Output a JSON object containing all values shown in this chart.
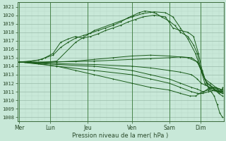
{
  "xlabel": "Pression niveau de la mer( hPa )",
  "ylim": [
    1007.5,
    1021.5
  ],
  "xlim": [
    -0.05,
    5.45
  ],
  "background_color": "#c8e8d8",
  "grid_major_color": "#99bbaa",
  "grid_minor_color": "#b8d8c8",
  "line_color": "#1a5c1a",
  "day_labels": [
    "Mer",
    "Lun",
    "Jeu",
    "Ven",
    "Sam",
    "Dim"
  ],
  "day_positions": [
    0.0,
    0.83,
    1.83,
    3.0,
    4.0,
    4.83
  ],
  "yticks": [
    1008,
    1009,
    1010,
    1011,
    1012,
    1013,
    1014,
    1015,
    1016,
    1017,
    1018,
    1019,
    1020,
    1021
  ],
  "lines": [
    {
      "x": [
        0.0,
        0.15,
        0.3,
        0.5,
        0.7,
        0.9,
        1.1,
        1.3,
        1.5,
        1.7,
        1.9,
        2.1,
        2.3,
        2.5,
        2.7,
        2.9,
        3.05,
        3.2,
        3.35,
        3.5,
        3.65,
        3.8,
        4.0,
        4.15,
        4.3,
        4.5,
        4.65,
        4.75,
        4.85,
        4.95,
        5.05,
        5.15,
        5.3,
        5.42
      ],
      "y": [
        1014.5,
        1014.5,
        1014.6,
        1014.7,
        1015.0,
        1015.3,
        1016.2,
        1016.8,
        1017.3,
        1017.6,
        1017.9,
        1018.2,
        1018.5,
        1018.8,
        1019.2,
        1019.7,
        1020.0,
        1020.3,
        1020.5,
        1020.4,
        1020.2,
        1019.8,
        1019.3,
        1018.8,
        1018.0,
        1017.5,
        1016.5,
        1015.5,
        1013.5,
        1012.0,
        1011.5,
        1011.2,
        1011.0,
        1011.3
      ]
    },
    {
      "x": [
        0.0,
        0.5,
        1.0,
        1.5,
        2.0,
        2.5,
        3.0,
        3.3,
        3.6,
        3.9,
        4.1,
        4.3,
        4.5,
        4.7,
        4.85,
        5.0,
        5.15,
        5.3,
        5.42
      ],
      "y": [
        1014.5,
        1014.4,
        1014.6,
        1016.8,
        1018.2,
        1019.0,
        1019.8,
        1020.2,
        1020.4,
        1020.3,
        1019.8,
        1018.5,
        1017.2,
        1015.5,
        1013.5,
        1012.0,
        1011.5,
        1011.0,
        1010.8
      ]
    },
    {
      "x": [
        0.0,
        1.0,
        2.0,
        3.0,
        3.5,
        4.0,
        4.3,
        4.6,
        4.75,
        4.85,
        4.95,
        5.1,
        5.25,
        5.42
      ],
      "y": [
        1014.5,
        1014.5,
        1014.6,
        1014.8,
        1014.9,
        1015.0,
        1015.1,
        1015.0,
        1014.5,
        1013.5,
        1012.5,
        1012.0,
        1011.5,
        1011.2
      ]
    },
    {
      "x": [
        0.0,
        1.0,
        2.0,
        3.0,
        3.5,
        4.0,
        4.3,
        4.6,
        4.75,
        4.85,
        4.95,
        5.1,
        5.25,
        5.42
      ],
      "y": [
        1014.5,
        1014.3,
        1014.2,
        1014.0,
        1013.8,
        1013.5,
        1013.3,
        1013.0,
        1012.5,
        1012.0,
        1011.8,
        1011.5,
        1011.2,
        1011.0
      ]
    },
    {
      "x": [
        0.0,
        1.0,
        2.0,
        3.0,
        3.5,
        4.0,
        4.3,
        4.6,
        4.75,
        4.9,
        5.05,
        5.2,
        5.35,
        5.42
      ],
      "y": [
        1014.5,
        1014.2,
        1014.0,
        1013.5,
        1013.0,
        1012.5,
        1012.0,
        1011.5,
        1011.3,
        1011.0,
        1011.2,
        1011.5,
        1011.3,
        1011.0
      ]
    },
    {
      "x": [
        0.0,
        1.0,
        2.0,
        3.0,
        3.5,
        4.0,
        4.3,
        4.6,
        4.75,
        4.9,
        5.05,
        5.2,
        5.35,
        5.42
      ],
      "y": [
        1014.5,
        1014.0,
        1013.5,
        1013.0,
        1012.5,
        1012.0,
        1011.5,
        1011.0,
        1010.8,
        1010.8,
        1011.0,
        1011.2,
        1011.0,
        1010.8
      ]
    },
    {
      "x": [
        0.0,
        0.5,
        1.0,
        1.5,
        2.0,
        2.5,
        3.0,
        3.5,
        4.0,
        4.3,
        4.55,
        4.7,
        4.82,
        4.92,
        5.02,
        5.12,
        5.22,
        5.32,
        5.42
      ],
      "y": [
        1014.5,
        1014.3,
        1014.0,
        1013.5,
        1013.0,
        1012.5,
        1012.0,
        1011.5,
        1011.2,
        1010.8,
        1010.5,
        1010.5,
        1010.8,
        1011.0,
        1011.3,
        1011.5,
        1011.2,
        1010.8,
        1010.5
      ]
    },
    {
      "x": [
        0.0,
        0.5,
        1.0,
        1.5,
        2.0,
        2.5,
        3.0,
        3.5,
        4.0,
        4.5,
        4.75,
        4.88,
        4.95,
        5.05,
        5.12,
        5.2,
        5.28,
        5.35,
        5.42
      ],
      "y": [
        1014.5,
        1014.4,
        1014.5,
        1014.6,
        1014.8,
        1015.0,
        1015.2,
        1015.3,
        1015.2,
        1015.0,
        1014.5,
        1013.5,
        1012.5,
        1011.5,
        1011.0,
        1010.5,
        1009.5,
        1008.5,
        1008.0
      ]
    },
    {
      "x": [
        0.0,
        0.3,
        0.6,
        0.9,
        1.1,
        1.3,
        1.5,
        1.7,
        1.9,
        2.1,
        2.3,
        2.5,
        2.7,
        2.9,
        3.1,
        3.3,
        3.6,
        3.9,
        4.1,
        4.3,
        4.5,
        4.65,
        4.78,
        4.88,
        4.98,
        5.08,
        5.18,
        5.28,
        5.38,
        5.43
      ],
      "y": [
        1014.5,
        1014.6,
        1014.8,
        1015.5,
        1016.8,
        1017.2,
        1017.5,
        1017.3,
        1017.5,
        1017.8,
        1018.2,
        1018.5,
        1018.8,
        1019.2,
        1019.5,
        1019.8,
        1020.0,
        1019.8,
        1018.5,
        1018.2,
        1018.0,
        1017.5,
        1015.5,
        1013.5,
        1012.2,
        1011.8,
        1011.5,
        1011.3,
        1011.0,
        1011.5
      ]
    }
  ]
}
